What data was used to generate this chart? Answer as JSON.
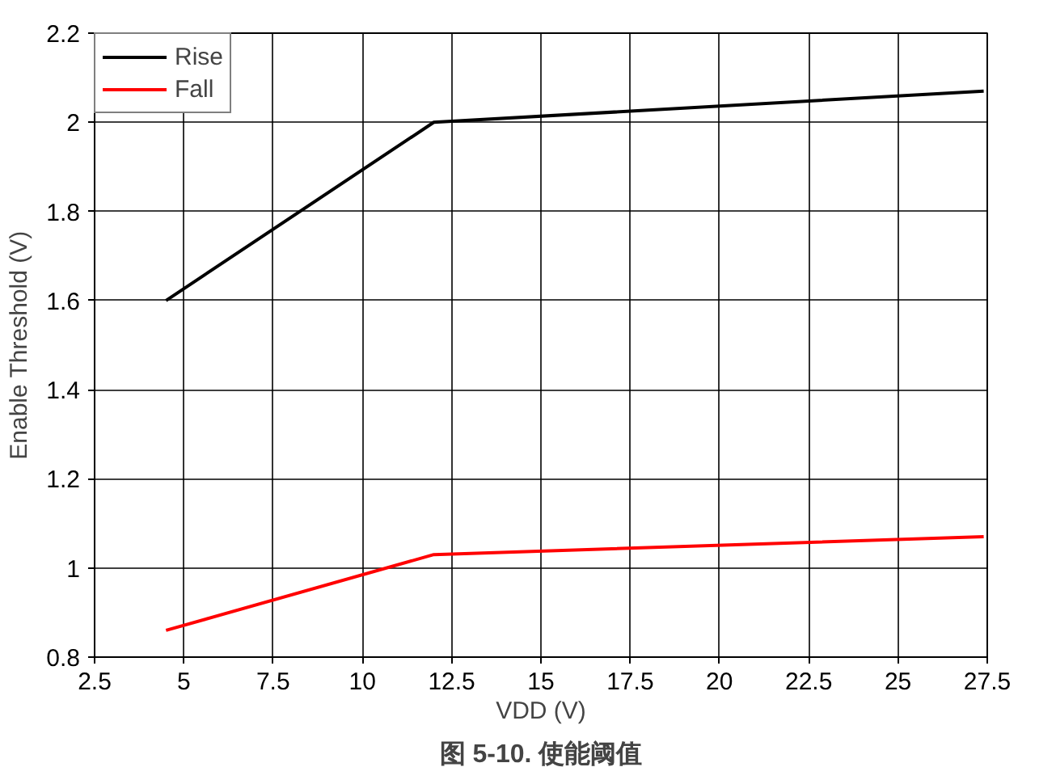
{
  "chart_data": {
    "type": "line",
    "title": "图 5-10. 使能阈值",
    "xlabel": "VDD (V)",
    "ylabel": "Enable Threshold (V)",
    "xlim": [
      2.5,
      27.5
    ],
    "xticks": [
      2.5,
      5,
      7.5,
      10,
      12.5,
      15,
      17.5,
      20,
      22.5,
      25,
      27.5
    ],
    "ylim": [
      0.8,
      2.2
    ],
    "yticks": [
      0.8,
      1,
      1.2,
      1.4,
      1.6,
      1.8,
      2,
      2.2
    ],
    "grid": true,
    "legend": "top left",
    "marker": "none",
    "line_style": "solid",
    "series": [
      {
        "name": "Rise",
        "color": "#000000",
        "x": [
          4.5,
          12,
          27.4
        ],
        "values": [
          1.6,
          2.0,
          2.07
        ]
      },
      {
        "name": "Fall",
        "color": "#ff0000",
        "x": [
          4.5,
          12,
          27.4
        ],
        "values": [
          0.86,
          1.03,
          1.07
        ]
      }
    ]
  }
}
